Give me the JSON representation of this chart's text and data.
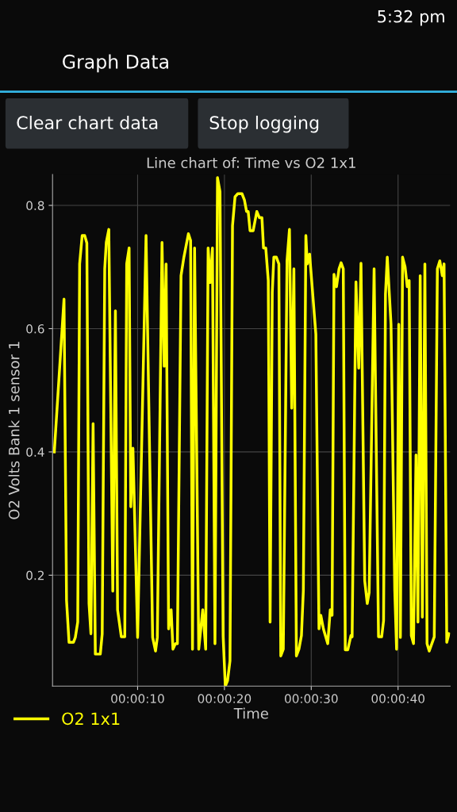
{
  "chart_data": {
    "type": "line",
    "title": "Line chart of: Time vs O2 1x1",
    "xlabel": "Time",
    "ylabel": "O2 Volts Bank 1 sensor 1",
    "annotations": [
      "5:32 pm",
      "Graph Data",
      "Clear chart data",
      "Stop logging"
    ],
    "xlim": [
      0.2,
      46.0
    ],
    "ylim": [
      0.02,
      0.85
    ],
    "xticks": [
      {
        "value": 10,
        "label": "00:00:10"
      },
      {
        "value": 20,
        "label": "00:00:20"
      },
      {
        "value": 30,
        "label": "00:00:30"
      },
      {
        "value": 40,
        "label": "00:00:40"
      }
    ],
    "yticks": [
      0.2,
      0.4,
      0.6,
      0.8
    ],
    "grid": true,
    "legend": "bottom left",
    "series": [
      {
        "name": "O2 1x1",
        "color": "#ffff00",
        "x": [
          0.4,
          1.52,
          1.81,
          2.1,
          2.6,
          2.82,
          3.1,
          3.32,
          3.61,
          3.9,
          4.15,
          4.4,
          4.62,
          4.87,
          5.13,
          5.7,
          5.92,
          6.21,
          6.39,
          6.68,
          7.14,
          7.44,
          7.69,
          8.12,
          8.52,
          8.74,
          9.02,
          9.21,
          9.46,
          10.0,
          10.97,
          11.73,
          12.06,
          12.27,
          12.81,
          13.06,
          13.28,
          13.57,
          13.86,
          14.07,
          14.36,
          14.58,
          15.0,
          15.33,
          15.85,
          16.1,
          16.32,
          16.56,
          17.04,
          17.5,
          17.84,
          18.12,
          18.37,
          18.62,
          18.91,
          19.2,
          19.49,
          19.85,
          20.1,
          20.36,
          20.64,
          20.93,
          21.22,
          21.54,
          22.02,
          22.3,
          22.55,
          22.74,
          22.95,
          23.31,
          23.73,
          24.03,
          24.32,
          24.5,
          24.76,
          25.05,
          25.26,
          25.51,
          25.69,
          25.98,
          26.27,
          26.49,
          26.78,
          27.21,
          27.49,
          27.75,
          28.0,
          28.29,
          28.58,
          28.87,
          29.09,
          29.38,
          29.54,
          29.81,
          30.53,
          30.89,
          31.1,
          31.4,
          31.9,
          32.19,
          32.4,
          32.62,
          32.91,
          33.2,
          33.44,
          33.69,
          33.92,
          34.21,
          34.57,
          34.71,
          35.15,
          35.47,
          35.73,
          36.16,
          36.45,
          36.67,
          37.24,
          37.75,
          38.11,
          38.33,
          38.55,
          38.76,
          39.19,
          39.62,
          39.83,
          40.08,
          40.27,
          40.52,
          40.81,
          41.06,
          41.28,
          41.53,
          41.78,
          42.07,
          42.29,
          42.55,
          42.8,
          43.09,
          43.34,
          43.59,
          44.17,
          44.53,
          44.81,
          45.1,
          45.3,
          45.61,
          45.86
        ],
        "values": [
          0.4,
          0.648,
          0.159,
          0.091,
          0.091,
          0.099,
          0.124,
          0.705,
          0.751,
          0.751,
          0.739,
          0.154,
          0.105,
          0.446,
          0.072,
          0.072,
          0.105,
          0.697,
          0.74,
          0.761,
          0.174,
          0.629,
          0.144,
          0.1,
          0.1,
          0.705,
          0.731,
          0.311,
          0.406,
          0.099,
          0.751,
          0.099,
          0.077,
          0.099,
          0.74,
          0.539,
          0.705,
          0.113,
          0.144,
          0.08,
          0.089,
          0.089,
          0.686,
          0.716,
          0.754,
          0.743,
          0.08,
          0.731,
          0.08,
          0.144,
          0.08,
          0.731,
          0.675,
          0.731,
          0.089,
          0.845,
          0.822,
          0.101,
          0.02,
          0.029,
          0.061,
          0.767,
          0.814,
          0.819,
          0.819,
          0.809,
          0.79,
          0.79,
          0.759,
          0.759,
          0.79,
          0.78,
          0.78,
          0.731,
          0.731,
          0.678,
          0.124,
          0.659,
          0.716,
          0.716,
          0.705,
          0.069,
          0.08,
          0.71,
          0.761,
          0.471,
          0.697,
          0.069,
          0.08,
          0.102,
          0.175,
          0.751,
          0.705,
          0.721,
          0.591,
          0.113,
          0.135,
          0.113,
          0.089,
          0.144,
          0.135,
          0.688,
          0.668,
          0.697,
          0.707,
          0.697,
          0.079,
          0.079,
          0.102,
          0.1,
          0.676,
          0.536,
          0.706,
          0.191,
          0.154,
          0.172,
          0.697,
          0.1,
          0.1,
          0.126,
          0.656,
          0.716,
          0.607,
          0.175,
          0.08,
          0.607,
          0.099,
          0.716,
          0.7,
          0.668,
          0.678,
          0.102,
          0.089,
          0.395,
          0.124,
          0.686,
          0.132,
          0.705,
          0.089,
          0.077,
          0.1,
          0.697,
          0.71,
          0.686,
          0.705,
          0.091,
          0.105
        ]
      }
    ]
  }
}
